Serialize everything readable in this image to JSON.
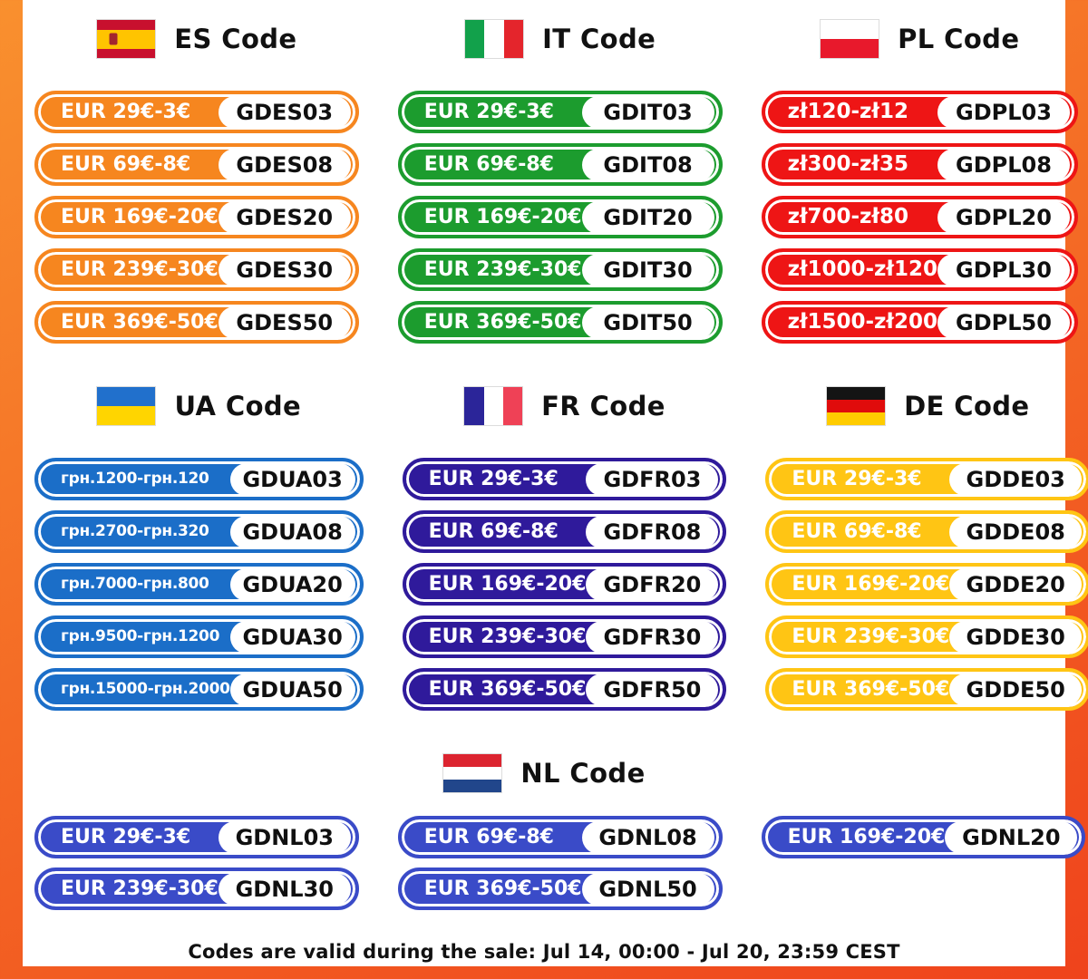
{
  "frame": {
    "gradient_start": "#F9902E",
    "gradient_end": "#EF431C"
  },
  "footer": {
    "text": "Codes are valid during the sale: Jul 14, 00:00 - Jul 20, 23:59 CEST"
  },
  "sections": [
    {
      "key": "es",
      "title": "ES Code",
      "color": "#F6861F",
      "flag": {
        "type": "h",
        "stripes": [
          [
            "#C8102E",
            1
          ],
          [
            "#FFC400",
            2
          ],
          [
            "#C8102E",
            1
          ]
        ],
        "emblem": "#A3262E"
      },
      "rows": [
        {
          "label": "EUR 29€-3€",
          "code": "GDES03"
        },
        {
          "label": "EUR 69€-8€",
          "code": "GDES08"
        },
        {
          "label": "EUR 169€-20€",
          "code": "GDES20"
        },
        {
          "label": "EUR 239€-30€",
          "code": "GDES30"
        },
        {
          "label": "EUR 369€-50€",
          "code": "GDES50"
        }
      ]
    },
    {
      "key": "it",
      "title": "IT Code",
      "color": "#1C9C2E",
      "flag": {
        "type": "v",
        "stripes": [
          [
            "#12A14B",
            1
          ],
          [
            "#FFFFFF",
            1
          ],
          [
            "#E4252C",
            1
          ]
        ]
      },
      "rows": [
        {
          "label": "EUR 29€-3€",
          "code": "GDIT03"
        },
        {
          "label": "EUR 69€-8€",
          "code": "GDIT08"
        },
        {
          "label": "EUR 169€-20€",
          "code": "GDIT20"
        },
        {
          "label": "EUR 239€-30€",
          "code": "GDIT30"
        },
        {
          "label": "EUR 369€-50€",
          "code": "GDIT50"
        }
      ]
    },
    {
      "key": "pl",
      "title": "PL Code",
      "color": "#EE1515",
      "flag": {
        "type": "h",
        "stripes": [
          [
            "#FFFFFF",
            1
          ],
          [
            "#E8192C",
            1
          ]
        ]
      },
      "rows": [
        {
          "label": "zł120-zł12",
          "code": "GDPL03"
        },
        {
          "label": "zł300-zł35",
          "code": "GDPL08"
        },
        {
          "label": "zł700-zł80",
          "code": "GDPL20"
        },
        {
          "label": "zł1000-zł120",
          "code": "GDPL30"
        },
        {
          "label": "zł1500-zł200",
          "code": "GDPL50"
        }
      ]
    },
    {
      "key": "ua",
      "title": "UA Code",
      "color": "#1B6EC8",
      "flag": {
        "type": "h",
        "stripes": [
          [
            "#2170CC",
            1
          ],
          [
            "#FFD500",
            1
          ]
        ]
      },
      "rows": [
        {
          "label": "грн.1200-грн.120",
          "code": "GDUA03"
        },
        {
          "label": "грн.2700-грн.320",
          "code": "GDUA08"
        },
        {
          "label": "грн.7000-грн.800",
          "code": "GDUA20"
        },
        {
          "label": "грн.9500-грн.1200",
          "code": "GDUA30"
        },
        {
          "label": "грн.15000-грн.2000",
          "code": "GDUA50"
        }
      ]
    },
    {
      "key": "fr",
      "title": "FR Code",
      "color": "#2F1A9B",
      "flag": {
        "type": "v",
        "stripes": [
          [
            "#2B2599",
            1
          ],
          [
            "#FFFFFF",
            1
          ],
          [
            "#EF4156",
            1
          ]
        ]
      },
      "rows": [
        {
          "label": "EUR 29€-3€",
          "code": "GDFR03"
        },
        {
          "label": "EUR 69€-8€",
          "code": "GDFR08"
        },
        {
          "label": "EUR 169€-20€",
          "code": "GDFR20"
        },
        {
          "label": "EUR 239€-30€",
          "code": "GDFR30"
        },
        {
          "label": "EUR 369€-50€",
          "code": "GDFR50"
        }
      ]
    },
    {
      "key": "de",
      "title": "DE Code",
      "color": "#FFC514",
      "flag": {
        "type": "h",
        "stripes": [
          [
            "#141414",
            1
          ],
          [
            "#E00C0C",
            1
          ],
          [
            "#FFCC00",
            1
          ]
        ]
      },
      "rows": [
        {
          "label": "EUR 29€-3€",
          "code": "GDDE03"
        },
        {
          "label": "EUR 69€-8€",
          "code": "GDDE08"
        },
        {
          "label": "EUR 169€-20€",
          "code": "GDDE20"
        },
        {
          "label": "EUR 239€-30€",
          "code": "GDDE30"
        },
        {
          "label": "EUR 369€-50€",
          "code": "GDDE50"
        }
      ]
    },
    {
      "key": "nl",
      "title": "NL Code",
      "color": "#3A4BC8",
      "layout": "wide",
      "flag": {
        "type": "h",
        "stripes": [
          [
            "#DC2430",
            1
          ],
          [
            "#FFFFFF",
            1
          ],
          [
            "#21468B",
            1
          ]
        ]
      },
      "rows": [
        {
          "label": "EUR 29€-3€",
          "code": "GDNL03"
        },
        {
          "label": "EUR 69€-8€",
          "code": "GDNL08"
        },
        {
          "label": "EUR 169€-20€",
          "code": "GDNL20"
        },
        {
          "label": "EUR 239€-30€",
          "code": "GDNL30"
        },
        {
          "label": "EUR 369€-50€",
          "code": "GDNL50"
        }
      ]
    }
  ]
}
